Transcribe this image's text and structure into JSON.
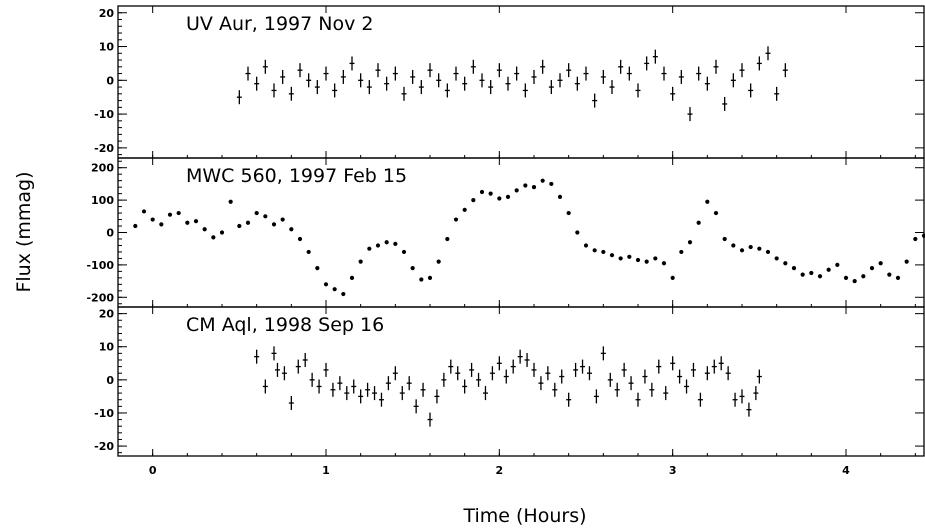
{
  "chart_data": {
    "type": "scatter",
    "xlabel": "Time (Hours)",
    "ylabel": "Flux (mmag)",
    "xlim": [
      -0.2,
      4.45
    ],
    "x_ticks": [
      0,
      1,
      2,
      3,
      4
    ],
    "x_tick_labels": [
      "0",
      "1",
      "2",
      "3",
      "4"
    ],
    "grid": false,
    "legend": "none",
    "colors": {
      "points": "#000000",
      "frame": "#000000",
      "background": "#ffffff"
    },
    "panels": [
      {
        "title": "UV Aur, 1997 Nov 2",
        "ylim": [
          -23,
          22
        ],
        "y_ticks": [
          20,
          10,
          0,
          -10,
          -20
        ],
        "y_tick_labels": [
          "20",
          "10",
          "0",
          "-10",
          "-20"
        ],
        "error_bars": true,
        "x_range": [
          0.5,
          3.65
        ],
        "points": [
          [
            0.5,
            -5
          ],
          [
            0.55,
            2
          ],
          [
            0.6,
            -1
          ],
          [
            0.65,
            4
          ],
          [
            0.7,
            -3
          ],
          [
            0.75,
            1
          ],
          [
            0.8,
            -4
          ],
          [
            0.85,
            3
          ],
          [
            0.9,
            0
          ],
          [
            0.95,
            -2
          ],
          [
            1.0,
            2
          ],
          [
            1.05,
            -3
          ],
          [
            1.1,
            1
          ],
          [
            1.15,
            5
          ],
          [
            1.2,
            0
          ],
          [
            1.25,
            -2
          ],
          [
            1.3,
            3
          ],
          [
            1.35,
            -1
          ],
          [
            1.4,
            2
          ],
          [
            1.45,
            -4
          ],
          [
            1.5,
            1
          ],
          [
            1.55,
            -2
          ],
          [
            1.6,
            3
          ],
          [
            1.65,
            0
          ],
          [
            1.7,
            -3
          ],
          [
            1.75,
            2
          ],
          [
            1.8,
            -1
          ],
          [
            1.85,
            4
          ],
          [
            1.9,
            0
          ],
          [
            1.95,
            -2
          ],
          [
            2.0,
            3
          ],
          [
            2.05,
            -1
          ],
          [
            2.1,
            2
          ],
          [
            2.15,
            -3
          ],
          [
            2.2,
            1
          ],
          [
            2.25,
            4
          ],
          [
            2.3,
            -2
          ],
          [
            2.35,
            0
          ],
          [
            2.4,
            3
          ],
          [
            2.45,
            -1
          ],
          [
            2.5,
            2
          ],
          [
            2.55,
            -6
          ],
          [
            2.6,
            1
          ],
          [
            2.65,
            -2
          ],
          [
            2.7,
            4
          ],
          [
            2.75,
            2
          ],
          [
            2.8,
            -3
          ],
          [
            2.85,
            5
          ],
          [
            2.9,
            7
          ],
          [
            2.95,
            2
          ],
          [
            3.0,
            -4
          ],
          [
            3.05,
            1
          ],
          [
            3.1,
            -10
          ],
          [
            3.15,
            2
          ],
          [
            3.2,
            -1
          ],
          [
            3.25,
            4
          ],
          [
            3.3,
            -7
          ],
          [
            3.35,
            0
          ],
          [
            3.4,
            3
          ],
          [
            3.45,
            -3
          ],
          [
            3.5,
            5
          ],
          [
            3.55,
            8
          ],
          [
            3.6,
            -4
          ],
          [
            3.65,
            3
          ]
        ]
      },
      {
        "title": "MWC 560,  1997 Feb 15",
        "ylim": [
          -230,
          230
        ],
        "y_ticks": [
          200,
          100,
          0,
          -100,
          -200
        ],
        "y_tick_labels": [
          "200",
          "100",
          "0",
          "-100",
          "-200"
        ],
        "error_bars": false,
        "x_range": [
          -0.1,
          4.45
        ],
        "points": [
          [
            -0.1,
            20
          ],
          [
            -0.05,
            65
          ],
          [
            0.0,
            40
          ],
          [
            0.05,
            25
          ],
          [
            0.1,
            55
          ],
          [
            0.15,
            60
          ],
          [
            0.2,
            30
          ],
          [
            0.25,
            35
          ],
          [
            0.3,
            10
          ],
          [
            0.35,
            -15
          ],
          [
            0.4,
            0
          ],
          [
            0.45,
            95
          ],
          [
            0.5,
            20
          ],
          [
            0.55,
            30
          ],
          [
            0.6,
            60
          ],
          [
            0.65,
            50
          ],
          [
            0.7,
            25
          ],
          [
            0.75,
            40
          ],
          [
            0.8,
            10
          ],
          [
            0.85,
            -20
          ],
          [
            0.9,
            -60
          ],
          [
            0.95,
            -110
          ],
          [
            1.0,
            -160
          ],
          [
            1.05,
            -175
          ],
          [
            1.1,
            -190
          ],
          [
            1.15,
            -140
          ],
          [
            1.2,
            -90
          ],
          [
            1.25,
            -50
          ],
          [
            1.3,
            -40
          ],
          [
            1.35,
            -30
          ],
          [
            1.4,
            -35
          ],
          [
            1.45,
            -60
          ],
          [
            1.5,
            -110
          ],
          [
            1.55,
            -145
          ],
          [
            1.6,
            -140
          ],
          [
            1.65,
            -90
          ],
          [
            1.7,
            -20
          ],
          [
            1.75,
            40
          ],
          [
            1.8,
            70
          ],
          [
            1.85,
            100
          ],
          [
            1.9,
            125
          ],
          [
            1.95,
            120
          ],
          [
            2.0,
            105
          ],
          [
            2.05,
            110
          ],
          [
            2.1,
            130
          ],
          [
            2.15,
            145
          ],
          [
            2.2,
            140
          ],
          [
            2.25,
            160
          ],
          [
            2.3,
            150
          ],
          [
            2.35,
            110
          ],
          [
            2.4,
            60
          ],
          [
            2.45,
            0
          ],
          [
            2.5,
            -40
          ],
          [
            2.55,
            -55
          ],
          [
            2.6,
            -60
          ],
          [
            2.65,
            -70
          ],
          [
            2.7,
            -80
          ],
          [
            2.75,
            -75
          ],
          [
            2.8,
            -85
          ],
          [
            2.85,
            -90
          ],
          [
            2.9,
            -80
          ],
          [
            2.95,
            -95
          ],
          [
            3.0,
            -140
          ],
          [
            3.05,
            -60
          ],
          [
            3.1,
            -30
          ],
          [
            3.15,
            30
          ],
          [
            3.2,
            95
          ],
          [
            3.25,
            60
          ],
          [
            3.3,
            -20
          ],
          [
            3.35,
            -40
          ],
          [
            3.4,
            -55
          ],
          [
            3.45,
            -45
          ],
          [
            3.5,
            -50
          ],
          [
            3.55,
            -60
          ],
          [
            3.6,
            -80
          ],
          [
            3.65,
            -95
          ],
          [
            3.7,
            -110
          ],
          [
            3.75,
            -130
          ],
          [
            3.8,
            -125
          ],
          [
            3.85,
            -135
          ],
          [
            3.9,
            -115
          ],
          [
            3.95,
            -100
          ],
          [
            4.0,
            -140
          ],
          [
            4.05,
            -150
          ],
          [
            4.1,
            -135
          ],
          [
            4.15,
            -110
          ],
          [
            4.2,
            -95
          ],
          [
            4.25,
            -130
          ],
          [
            4.3,
            -140
          ],
          [
            4.35,
            -90
          ],
          [
            4.4,
            -20
          ],
          [
            4.45,
            -10
          ]
        ]
      },
      {
        "title": "CM Aql, 1998 Sep 16",
        "ylim": [
          -23,
          22
        ],
        "y_ticks": [
          20,
          10,
          0,
          -10,
          -20
        ],
        "y_tick_labels": [
          "20",
          "10",
          "0",
          "-10",
          "-20"
        ],
        "error_bars": true,
        "x_range": [
          0.6,
          3.5
        ],
        "points": [
          [
            0.6,
            7
          ],
          [
            0.65,
            -2
          ],
          [
            0.7,
            8
          ],
          [
            0.72,
            3
          ],
          [
            0.76,
            2
          ],
          [
            0.8,
            -7
          ],
          [
            0.84,
            4
          ],
          [
            0.88,
            6
          ],
          [
            0.92,
            0
          ],
          [
            0.96,
            -2
          ],
          [
            1.0,
            3
          ],
          [
            1.04,
            -3
          ],
          [
            1.08,
            -1
          ],
          [
            1.12,
            -4
          ],
          [
            1.16,
            -2
          ],
          [
            1.2,
            -5
          ],
          [
            1.24,
            -3
          ],
          [
            1.28,
            -4
          ],
          [
            1.32,
            -6
          ],
          [
            1.36,
            -1
          ],
          [
            1.4,
            2
          ],
          [
            1.44,
            -4
          ],
          [
            1.48,
            -1
          ],
          [
            1.52,
            -8
          ],
          [
            1.56,
            -3
          ],
          [
            1.6,
            -12
          ],
          [
            1.64,
            -5
          ],
          [
            1.68,
            0
          ],
          [
            1.72,
            4
          ],
          [
            1.76,
            2
          ],
          [
            1.8,
            -2
          ],
          [
            1.84,
            3
          ],
          [
            1.88,
            0
          ],
          [
            1.92,
            -4
          ],
          [
            1.96,
            2
          ],
          [
            2.0,
            5
          ],
          [
            2.04,
            1
          ],
          [
            2.08,
            4
          ],
          [
            2.12,
            7
          ],
          [
            2.16,
            6
          ],
          [
            2.2,
            3
          ],
          [
            2.24,
            -1
          ],
          [
            2.28,
            2
          ],
          [
            2.32,
            -3
          ],
          [
            2.36,
            1
          ],
          [
            2.4,
            -6
          ],
          [
            2.44,
            3
          ],
          [
            2.48,
            4
          ],
          [
            2.52,
            2
          ],
          [
            2.56,
            -5
          ],
          [
            2.6,
            8
          ],
          [
            2.64,
            0
          ],
          [
            2.68,
            -3
          ],
          [
            2.72,
            3
          ],
          [
            2.76,
            -1
          ],
          [
            2.8,
            -6
          ],
          [
            2.84,
            1
          ],
          [
            2.88,
            -3
          ],
          [
            2.92,
            4
          ],
          [
            2.96,
            -4
          ],
          [
            3.0,
            5
          ],
          [
            3.04,
            1
          ],
          [
            3.08,
            -2
          ],
          [
            3.12,
            3
          ],
          [
            3.16,
            -6
          ],
          [
            3.2,
            2
          ],
          [
            3.24,
            4
          ],
          [
            3.28,
            5
          ],
          [
            3.32,
            2
          ],
          [
            3.36,
            -6
          ],
          [
            3.4,
            -5
          ],
          [
            3.44,
            -9
          ],
          [
            3.48,
            -4
          ],
          [
            3.5,
            1
          ]
        ]
      }
    ]
  }
}
